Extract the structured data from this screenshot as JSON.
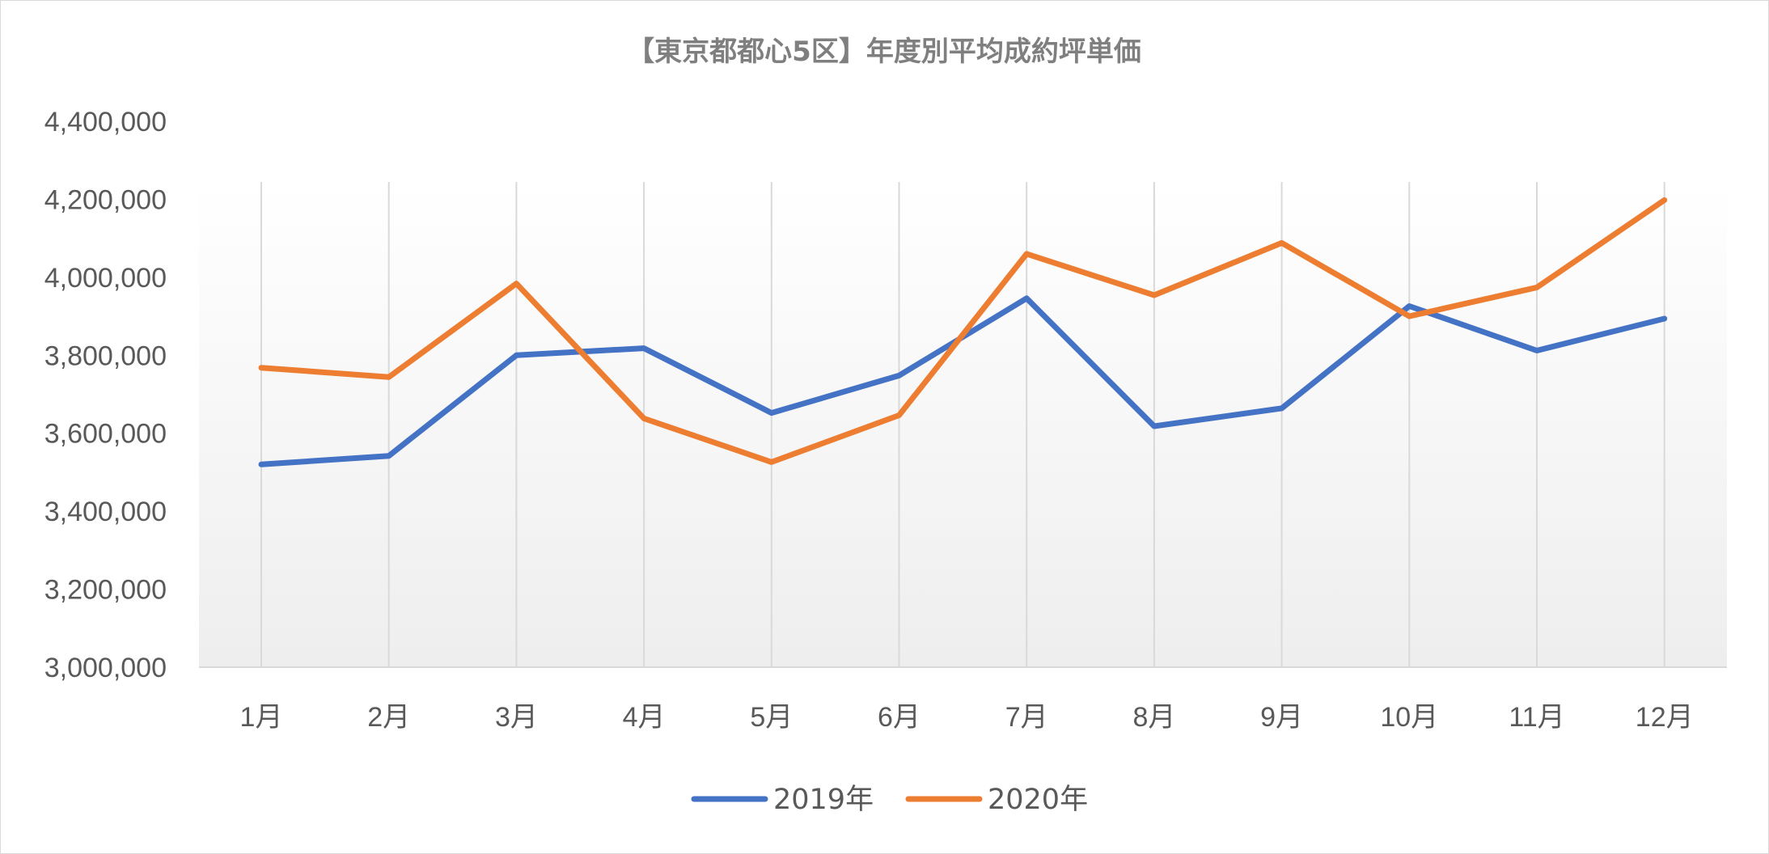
{
  "chart_data": {
    "type": "line",
    "title": "【東京都都心5区】年度別平均成約坪単価",
    "xlabel": "",
    "ylabel": "",
    "categories": [
      "1月",
      "2月",
      "3月",
      "4月",
      "5月",
      "6月",
      "7月",
      "8月",
      "9月",
      "10月",
      "11月",
      "12月"
    ],
    "ylim": [
      3000000,
      4400000
    ],
    "yticks": [
      3000000,
      3200000,
      3400000,
      3600000,
      3800000,
      4000000,
      4200000,
      4400000
    ],
    "ytick_labels": [
      "3,000,000",
      "3,200,000",
      "3,400,000",
      "3,600,000",
      "3,800,000",
      "4,000,000",
      "4,200,000",
      "4,400,000"
    ],
    "grid": "vertical lines at each category",
    "legend": "bottom-center",
    "series": [
      {
        "name": "2019年",
        "color": "#4472c4",
        "values": [
          3520000,
          3542000,
          3800000,
          3818000,
          3652000,
          3748000,
          3946000,
          3618000,
          3664000,
          3926000,
          3812000,
          3894000
        ]
      },
      {
        "name": "2020年",
        "color": "#ed7d31",
        "values": [
          3768000,
          3744000,
          3984000,
          3638000,
          3526000,
          3646000,
          4060000,
          3954000,
          4088000,
          3900000,
          3974000,
          4198000
        ]
      }
    ]
  }
}
